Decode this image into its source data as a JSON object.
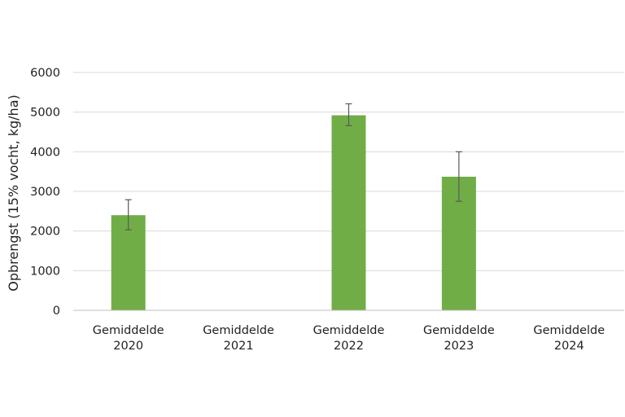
{
  "chart_data": {
    "type": "bar",
    "categories": [
      [
        "Gemiddelde",
        "2020"
      ],
      [
        "Gemiddelde",
        "2021"
      ],
      [
        "Gemiddelde",
        "2022"
      ],
      [
        "Gemiddelde",
        "2023"
      ],
      [
        "Gemiddelde",
        "2024"
      ]
    ],
    "values": [
      2400,
      null,
      4920,
      3370,
      null
    ],
    "error_low": [
      2030,
      null,
      4660,
      2750,
      null
    ],
    "error_high": [
      2790,
      null,
      5210,
      4000,
      null
    ],
    "ylabel": "Opbrengst (15% vocht, kg/ha)",
    "xlabel": "",
    "ylim": [
      0,
      6000
    ],
    "yticks": [
      0,
      1000,
      2000,
      3000,
      4000,
      5000,
      6000
    ],
    "grid": true,
    "legend": "none",
    "colors": {
      "bar": "#70ad47",
      "grid": "#d9d9d9",
      "error": "#595959",
      "axis": "#bfbfbf"
    }
  }
}
